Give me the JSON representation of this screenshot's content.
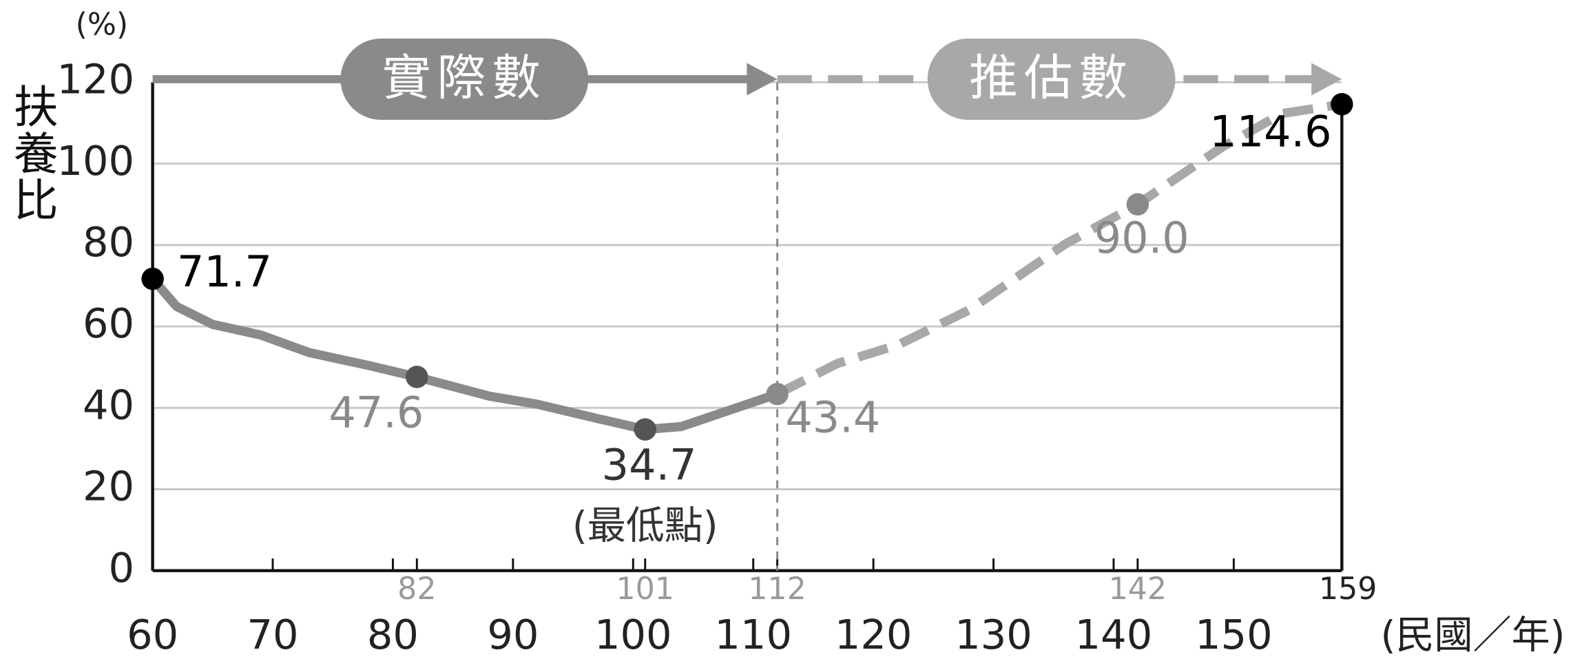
{
  "chart_data": {
    "type": "line",
    "y_label": "扶養比",
    "y_unit": "(%)",
    "x_unit": "(民國／年)",
    "phase_labels": [
      "實際數",
      "推估數"
    ],
    "annotation": "(最低點)",
    "xlim": [
      60,
      159
    ],
    "ylim": [
      0,
      120
    ],
    "xticks": [
      60,
      70,
      80,
      90,
      100,
      110,
      120,
      130,
      140,
      150
    ],
    "yticks": [
      0,
      20,
      40,
      60,
      80,
      100,
      120
    ],
    "highlight_xticks": [
      82,
      101,
      112,
      142,
      159
    ],
    "divider_x": 112,
    "grid": true,
    "series": [
      {
        "name": "實際數",
        "color": "#8a8a8a",
        "dashed": false,
        "x": [
          60,
          62,
          65,
          69,
          73,
          78,
          82,
          88,
          92,
          97,
          101,
          104,
          107,
          112
        ],
        "values": [
          71.7,
          64.9,
          60.5,
          57.9,
          53.6,
          50.4,
          47.6,
          42.9,
          40.9,
          37.4,
          34.7,
          35.4,
          38.4,
          43.4
        ]
      },
      {
        "name": "推估數",
        "color": "#a8a8a8",
        "dashed": true,
        "x": [
          112,
          117,
          122,
          128,
          136,
          142,
          149,
          154,
          159
        ],
        "values": [
          43.4,
          50.9,
          55.4,
          64.1,
          80.3,
          90.0,
          104.0,
          112.3,
          114.6
        ]
      }
    ],
    "highlight_points": {
      "x": [
        60,
        82,
        101,
        112,
        142,
        159
      ],
      "values": [
        71.7,
        47.6,
        34.7,
        43.4,
        90.0,
        114.6
      ],
      "value_labels": [
        "71.7",
        "47.6",
        "34.7",
        "43.4",
        "90.0",
        "114.6"
      ]
    }
  }
}
